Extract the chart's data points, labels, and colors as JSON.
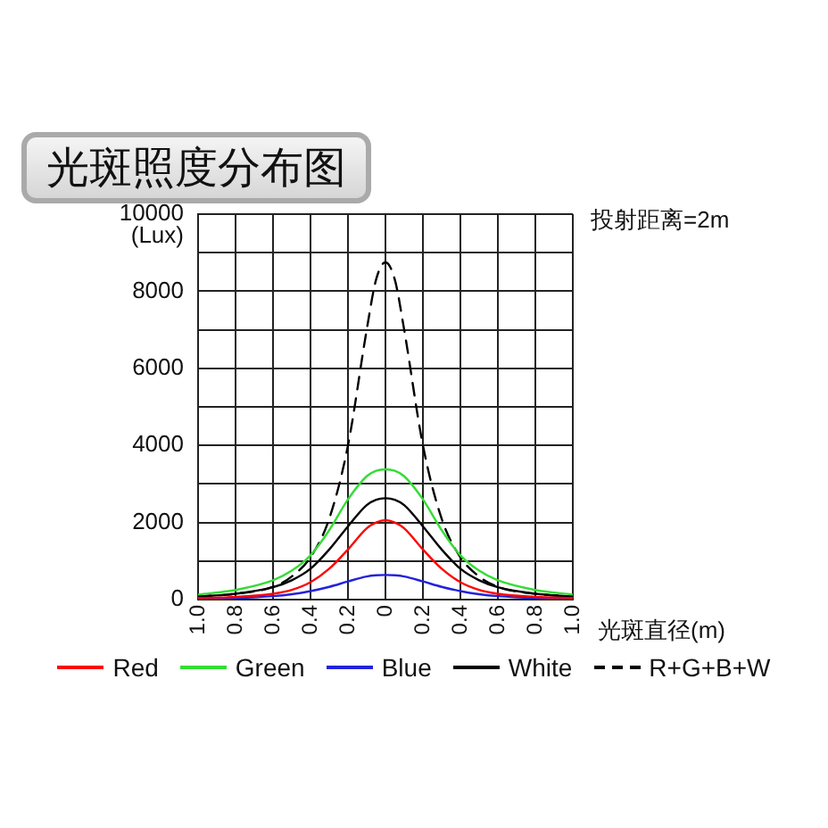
{
  "chart_data": {
    "type": "line",
    "title": "光斑照度分布图",
    "xlabel": "光斑直径(m)",
    "ylabel": "(Lux)",
    "annotations": [
      "投射距离=2m"
    ],
    "x": [
      -1,
      -0.8,
      -0.6,
      -0.5,
      -0.4,
      -0.3,
      -0.2,
      -0.1,
      -0.05,
      0,
      0.05,
      0.1,
      0.2,
      0.3,
      0.4,
      0.5,
      0.6,
      0.8,
      1
    ],
    "xlim": [
      -1,
      1
    ],
    "xticks": [
      {
        "value": -1,
        "label": "1.0"
      },
      {
        "value": -0.8,
        "label": "0.8"
      },
      {
        "value": -0.6,
        "label": "0.6"
      },
      {
        "value": -0.4,
        "label": "0.4"
      },
      {
        "value": -0.2,
        "label": "0.2"
      },
      0,
      {
        "value": 0.2,
        "label": "0.2"
      },
      {
        "value": 0.4,
        "label": "0.4"
      },
      {
        "value": 0.6,
        "label": "0.6"
      },
      {
        "value": 0.8,
        "label": "0.8"
      },
      {
        "value": 1,
        "label": "1.0"
      }
    ],
    "ylim": [
      0,
      10000
    ],
    "yticks": [
      0,
      {
        "value": 1000,
        "label": null
      },
      2000,
      {
        "value": 3000,
        "label": null
      },
      4000,
      {
        "value": 5000,
        "label": null
      },
      6000,
      {
        "value": 7000,
        "label": null
      },
      8000,
      {
        "value": 9000,
        "label": null
      },
      10000
    ],
    "grid": true,
    "legend": "bottom",
    "marker": "none",
    "series": [
      {
        "name": "Red",
        "color": "#ff0000",
        "values": [
          40,
          70,
          150,
          250,
          450,
          800,
          1300,
          1850,
          2000,
          2060,
          2000,
          1850,
          1300,
          800,
          450,
          250,
          150,
          70,
          40
        ]
      },
      {
        "name": "Green",
        "color": "#33dd33",
        "values": [
          130,
          250,
          500,
          750,
          1150,
          1800,
          2600,
          3200,
          3340,
          3380,
          3340,
          3200,
          2600,
          1800,
          1150,
          750,
          500,
          250,
          130
        ]
      },
      {
        "name": "Blue",
        "color": "#2222dd",
        "values": [
          20,
          40,
          90,
          140,
          220,
          330,
          470,
          600,
          630,
          640,
          630,
          600,
          470,
          330,
          220,
          140,
          90,
          40,
          20
        ]
      },
      {
        "name": "White",
        "color": "#000000",
        "values": [
          80,
          150,
          320,
          500,
          800,
          1300,
          1900,
          2450,
          2590,
          2630,
          2590,
          2450,
          1900,
          1300,
          800,
          500,
          320,
          150,
          80
        ]
      },
      {
        "name": "R+G+B+W",
        "color": "#000000",
        "line_style": "dashed",
        "values": [
          80,
          150,
          330,
          600,
          1100,
          2100,
          4000,
          7000,
          8300,
          8750,
          8300,
          7000,
          4000,
          2100,
          1100,
          600,
          330,
          150,
          80
        ]
      }
    ]
  }
}
